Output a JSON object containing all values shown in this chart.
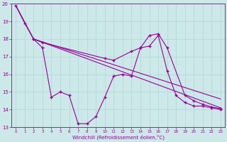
{
  "xlabel": "Windchill (Refroidissement éolien,°C)",
  "bg_color": "#cce8e8",
  "line_color": "#990099",
  "grid_color": "#aad4d4",
  "xlim": [
    -0.5,
    23.5
  ],
  "ylim": [
    13,
    20
  ],
  "xticks": [
    0,
    1,
    2,
    3,
    4,
    5,
    6,
    7,
    8,
    9,
    10,
    11,
    12,
    13,
    14,
    15,
    16,
    17,
    18,
    19,
    20,
    21,
    22,
    23
  ],
  "yticks": [
    13,
    14,
    15,
    16,
    17,
    18,
    19,
    20
  ],
  "line1_x": [
    0,
    1,
    2,
    3,
    4,
    5,
    6,
    7,
    8,
    9,
    10,
    11,
    12,
    13,
    14,
    15,
    16,
    17,
    18,
    19,
    20,
    21,
    22,
    23
  ],
  "line1_y": [
    19.9,
    18.9,
    18.0,
    17.5,
    14.7,
    15.0,
    14.8,
    13.2,
    13.2,
    13.6,
    14.7,
    15.9,
    16.0,
    15.9,
    17.5,
    17.6,
    18.2,
    16.2,
    14.8,
    14.4,
    14.2,
    14.2,
    14.1,
    14.0
  ],
  "line2_x": [
    2,
    3,
    10,
    11,
    13,
    14,
    15,
    16,
    17,
    19,
    20,
    21,
    22,
    23
  ],
  "line2_y": [
    18.0,
    17.8,
    16.9,
    16.8,
    17.3,
    17.5,
    18.2,
    18.3,
    17.5,
    14.8,
    14.5,
    14.3,
    14.15,
    14.05
  ],
  "line3_x": [
    0,
    2,
    23
  ],
  "line3_y": [
    19.9,
    18.0,
    14.1
  ],
  "line4_x": [
    0,
    2,
    23
  ],
  "line4_y": [
    19.9,
    18.0,
    14.6
  ]
}
